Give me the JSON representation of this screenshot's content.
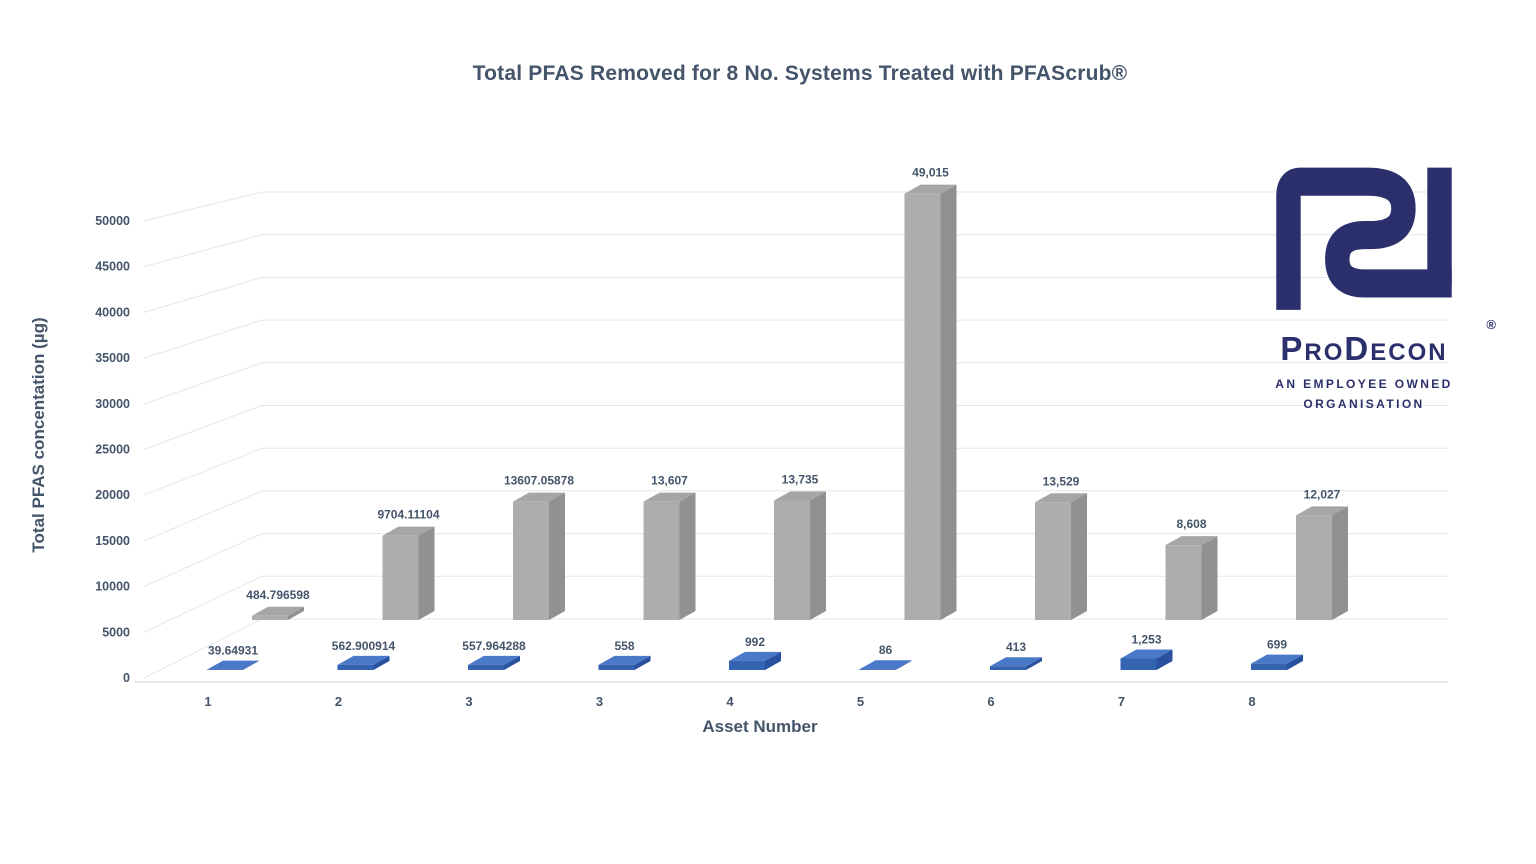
{
  "title": "Total PFAS Removed for 8 No. Systems Treated with PFAScrub®",
  "chart_data": {
    "type": "bar",
    "variant": "3d-column",
    "title": "Total PFAS Removed for 8 No. Systems Treated with PFAScrub®",
    "xlabel": "Asset Number",
    "ylabel": "Total PFAS concentation (µg)",
    "categories": [
      "1",
      "2",
      "3",
      "3",
      "4",
      "5",
      "6",
      "7",
      "8"
    ],
    "yticks": [
      0,
      5000,
      10000,
      15000,
      20000,
      25000,
      30000,
      35000,
      40000,
      45000,
      50000
    ],
    "ylim": [
      0,
      50000
    ],
    "grid": true,
    "legend": false,
    "text_color": "#44546A",
    "gridline_color": "#E4E6EB",
    "series": [
      {
        "name": "blue-front-row",
        "colors": {
          "top": "#4A79C9",
          "front": "#3363B1",
          "side": "#29519E"
        },
        "values": [
          39.64931,
          562.900914,
          557.964288,
          558,
          992,
          86,
          413,
          1253,
          699
        ],
        "labels": [
          "39.64931",
          "562.900914",
          "557.964288",
          "558",
          "992",
          "86",
          "413",
          "1,253",
          "699"
        ]
      },
      {
        "name": "grey-back-row",
        "colors": {
          "top": "#A4A6A8",
          "front": "#ADADAD",
          "side": "#8F9193"
        },
        "values": [
          484.796598,
          9704.11104,
          13607.05878,
          13607,
          13735,
          49015,
          13529,
          8608,
          12027
        ],
        "labels": [
          "484.796598",
          "9704.11104",
          "13607.05878",
          "13,607",
          "13,735",
          "49,015",
          "13,529",
          "8,608",
          "12,027"
        ]
      }
    ]
  },
  "logo": {
    "brand_parts": [
      "P",
      "ro",
      "D",
      "econ"
    ],
    "registered_mark": "®",
    "tagline_line1": "AN EMPLOYEE OWNED",
    "tagline_line2": "ORGANISATION",
    "color": "#2B2F6C"
  }
}
